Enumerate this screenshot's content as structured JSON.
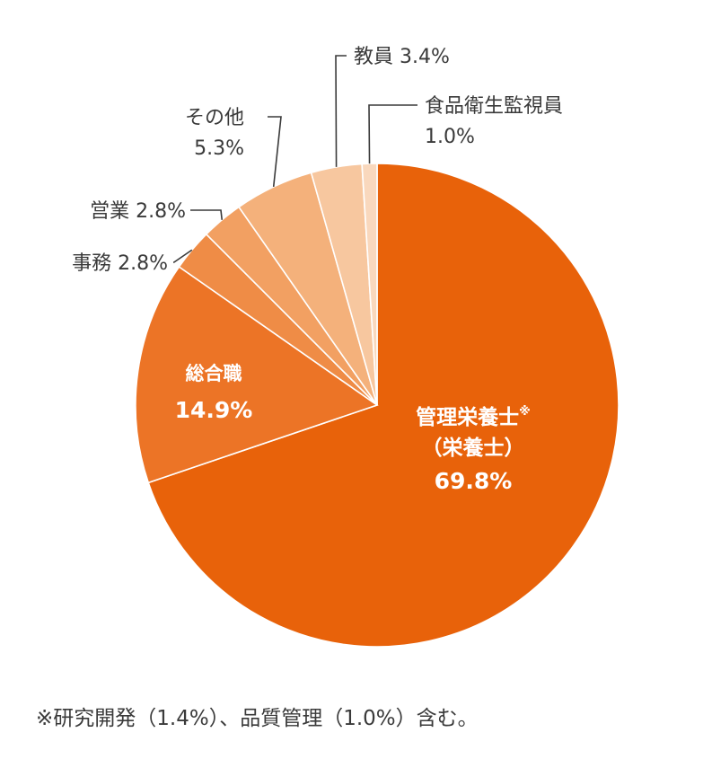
{
  "chart_data": {
    "type": "pie",
    "start_angle_deg": 0,
    "direction": "clockwise",
    "slices": [
      {
        "label": "管理栄養士",
        "label_mark": "※",
        "label_sub": "（栄養士）",
        "value": 69.8,
        "value_text": "69.8%",
        "color": "#e8620a"
      },
      {
        "label": "総合職",
        "value": 14.9,
        "value_text": "14.9%",
        "color": "#ec7426"
      },
      {
        "label": "事務",
        "value": 2.8,
        "value_text": "2.8%",
        "color": "#ef8c46"
      },
      {
        "label": "営業",
        "value": 2.8,
        "value_text": "2.8%",
        "color": "#f2a062"
      },
      {
        "label": "その他",
        "value": 5.3,
        "value_text": "5.3%",
        "color": "#f4b17b"
      },
      {
        "label": "教員",
        "value": 3.4,
        "value_text": "3.4%",
        "color": "#f7c79f"
      },
      {
        "label": "食品衛生監視員",
        "value": 1.0,
        "value_text": "1.0%",
        "color": "#f9d8bd"
      }
    ]
  },
  "footnote": "※研究開発（1.4%）、品質管理（1.0%）含む。"
}
